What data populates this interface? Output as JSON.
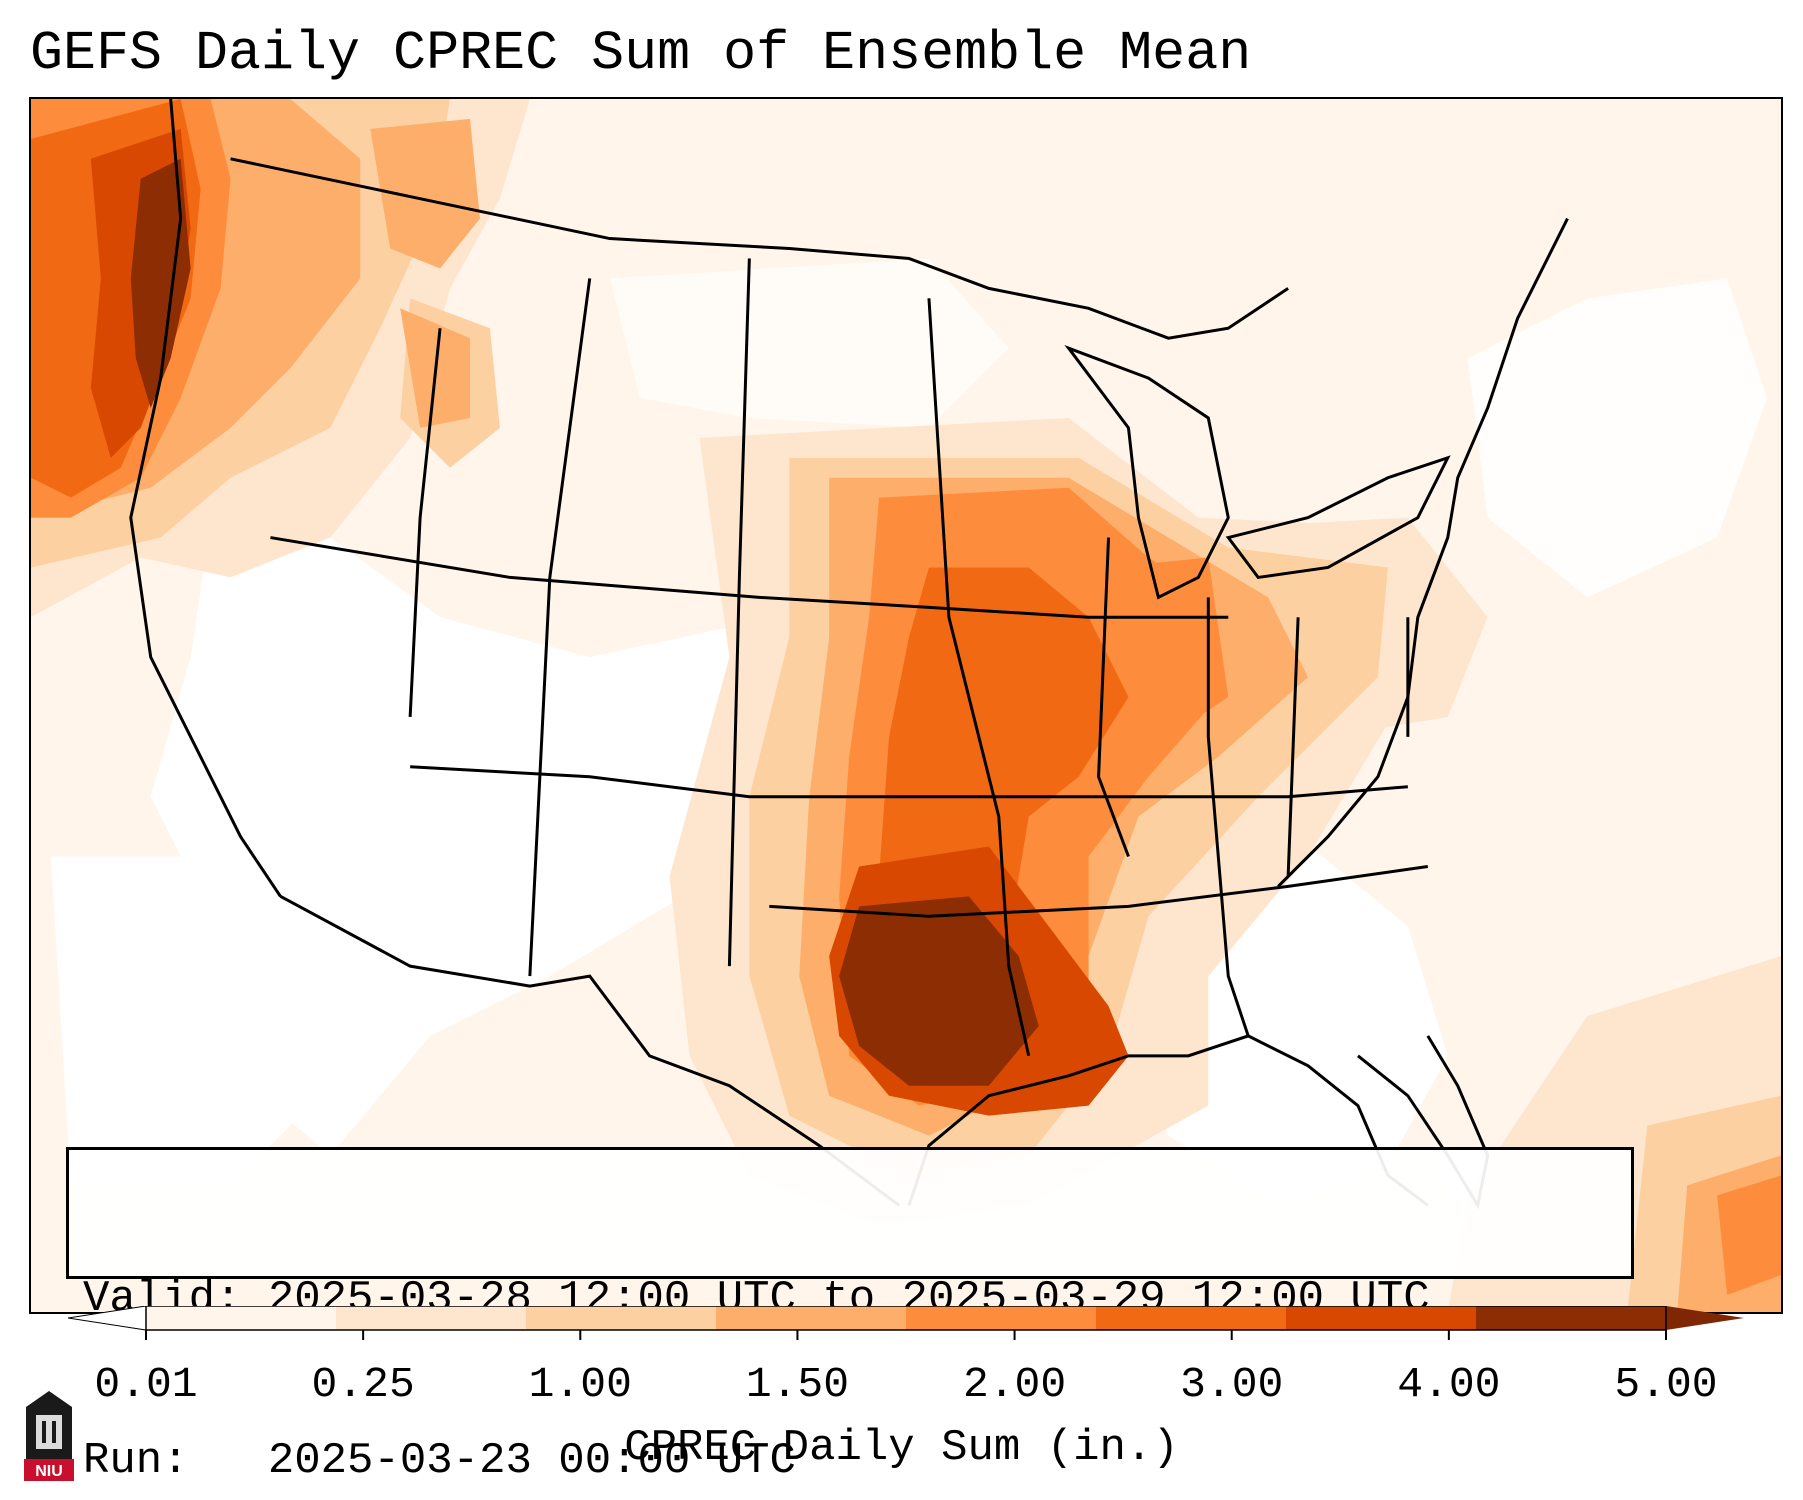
{
  "title": "GEFS Daily CPREC Sum of Ensemble Mean",
  "info": {
    "valid_label": "Valid:",
    "valid_value": "2025-03-28 12:00 UTC to 2025-03-29 12:00 UTC",
    "run_label": "Run:",
    "run_value": "2025-03-23 00:00 UTC"
  },
  "colorbar": {
    "label": "CPREC Daily Sum (in.)",
    "ticks": [
      "0.01",
      "0.25",
      "1.00",
      "1.50",
      "2.00",
      "3.00",
      "4.00",
      "5.00"
    ],
    "colors": [
      "#fff5eb",
      "#fee6ce",
      "#fdd0a2",
      "#fdae6b",
      "#fd8d3c",
      "#f16913",
      "#d94801",
      "#8c2d04"
    ],
    "over_color": "#7f2704",
    "under_color": "#ffffff"
  },
  "map": {
    "region": "Continental United States",
    "variable": "CPREC",
    "max_region": "Eastern Texas / Louisiana",
    "colors": {
      "background": "#fff8f0",
      "low": "#fee6ce",
      "medium_low": "#fdd0a2",
      "medium": "#fdae6b",
      "medium_high": "#fd8d3c",
      "high": "#f16913",
      "very_high": "#d94801",
      "extreme": "#8c2d04",
      "dry": "#ffffff",
      "borders": "#000000"
    }
  },
  "logo": {
    "text": "NIU",
    "color": "#c8102e"
  }
}
